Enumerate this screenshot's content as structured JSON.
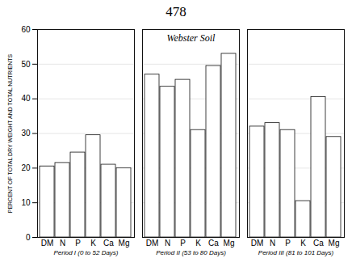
{
  "chart_data": {
    "type": "bar",
    "title": "478",
    "ylabel": "PERCENT OF TOTAL DRY WEIGHT AND TOTAL NUTRIENTS",
    "annotation": "Webster Soil",
    "categories": [
      "DM",
      "N",
      "P",
      "K",
      "Ca",
      "Mg"
    ],
    "series": [
      {
        "name": "Period I (0 to 52 Days)",
        "values": [
          20.5,
          21.5,
          24.5,
          29.5,
          21.0,
          20.0
        ]
      },
      {
        "name": "Period II (53 to 80 Days)",
        "values": [
          47.0,
          43.5,
          45.5,
          31.0,
          49.5,
          53.0
        ]
      },
      {
        "name": "Period III (81 to 101 Days)",
        "values": [
          32.0,
          33.0,
          31.0,
          10.5,
          40.5,
          29.0
        ]
      }
    ],
    "color": "#ffffff",
    "ylim": [
      0,
      60
    ],
    "yticks": [
      0,
      10,
      20,
      30,
      40,
      50,
      60
    ],
    "grid": true
  }
}
